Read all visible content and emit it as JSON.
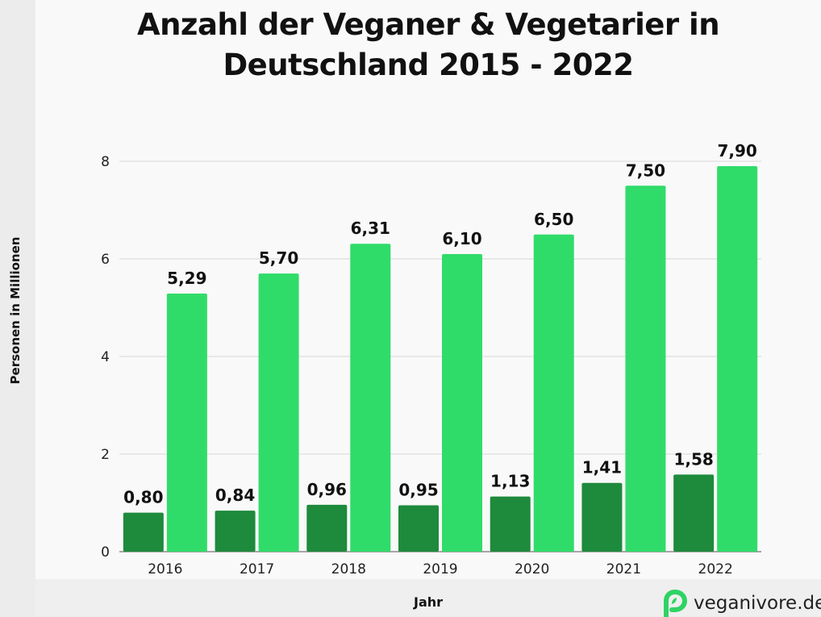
{
  "page": {
    "title_line1": "Anzahl der Veganer & Vegetarier in",
    "title_line2": "Deutschland 2015 - 2022",
    "brand": "veganivore.de",
    "brand_icon": "veganivore-logo-icon"
  },
  "chart_data": {
    "type": "bar",
    "title": "Anzahl der Veganer & Vegetarier in Deutschland 2015 - 2022",
    "xlabel": "Jahr",
    "ylabel": "Personen in Millionen",
    "ylim": [
      0,
      8
    ],
    "yticks": [
      0,
      2,
      4,
      6,
      8
    ],
    "grid": true,
    "categories": [
      "2016",
      "2017",
      "2018",
      "2019",
      "2020",
      "2021",
      "2022"
    ],
    "series": [
      {
        "values": [
          0.8,
          0.84,
          0.96,
          0.95,
          1.13,
          1.41,
          1.58
        ],
        "labels": [
          "0,80",
          "0,84",
          "0,96",
          "0,95",
          "1,13",
          "1,41",
          "1,58"
        ],
        "color": "#1e8a3c"
      },
      {
        "values": [
          5.29,
          5.7,
          6.31,
          6.1,
          6.5,
          7.5,
          7.9
        ],
        "labels": [
          "5,29",
          "5,70",
          "6,31",
          "6,10",
          "6,50",
          "7,50",
          "7,90"
        ],
        "color": "#30dc69"
      }
    ]
  }
}
